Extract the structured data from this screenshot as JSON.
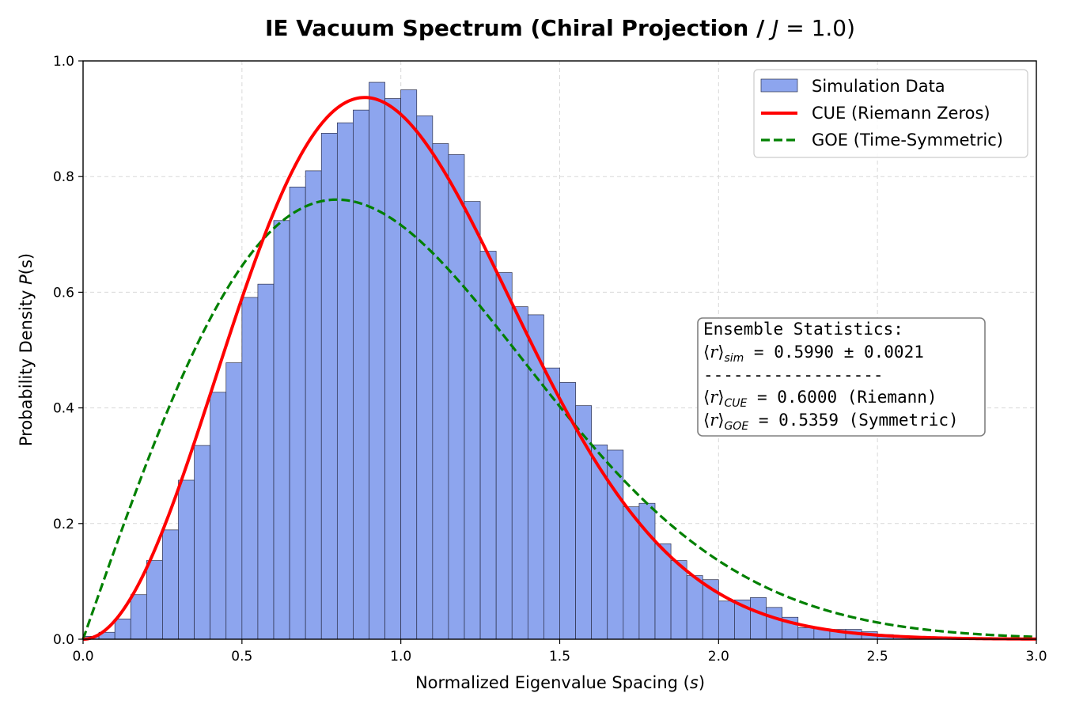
{
  "chart_data": {
    "type": "histogram",
    "title": "IE Vacuum Spectrum (Chiral Projection / J = 1.0)",
    "title_main": "IE Vacuum Spectrum (Chiral Projection / ",
    "title_var": "J",
    "title_eq": " = 1.0)",
    "xlabel": "Normalized Eigenvalue Spacing (s)",
    "xlabel_main": "Normalized Eigenvalue Spacing (",
    "xlabel_var": "s",
    "xlabel_close": ")",
    "ylabel": "Probability Density P(s)",
    "ylabel_main": "Probability Density ",
    "ylabel_var": "P",
    "ylabel_close": "(s)",
    "xlim": [
      0.0,
      3.0
    ],
    "ylim": [
      0.0,
      1.0
    ],
    "xticks": [
      0.0,
      0.5,
      1.0,
      1.5,
      2.0,
      2.5,
      3.0
    ],
    "xtick_labels": [
      "0.0",
      "0.5",
      "1.0",
      "1.5",
      "2.0",
      "2.5",
      "3.0"
    ],
    "yticks": [
      0.0,
      0.2,
      0.4,
      0.6,
      0.8,
      1.0
    ],
    "ytick_labels": [
      "0.0",
      "0.2",
      "0.4",
      "0.6",
      "0.8",
      "1.0"
    ],
    "grid": true,
    "legend_position": "upper-right",
    "histogram": {
      "name": "Simulation Data",
      "bin_width": 0.05,
      "bin_start": 0.0,
      "color": "#8da5ee",
      "edge_color": "#2b2f4a",
      "values": [
        0.005,
        0.012,
        0.035,
        0.077,
        0.136,
        0.189,
        0.275,
        0.335,
        0.427,
        0.478,
        0.591,
        0.614,
        0.724,
        0.782,
        0.81,
        0.875,
        0.893,
        0.915,
        0.963,
        0.935,
        0.95,
        0.905,
        0.857,
        0.838,
        0.757,
        0.671,
        0.634,
        0.575,
        0.561,
        0.469,
        0.444,
        0.404,
        0.336,
        0.327,
        0.229,
        0.235,
        0.165,
        0.136,
        0.11,
        0.103,
        0.066,
        0.068,
        0.072,
        0.055,
        0.038,
        0.02,
        0.018,
        0.017,
        0.017,
        0.013,
        0.008,
        0.006,
        0.004,
        0.003,
        0.003,
        0.002,
        0.002,
        0.001,
        0.001,
        0.001
      ]
    },
    "curves": [
      {
        "name": "CUE (Riemann Zeros)",
        "formula": "(32/pi^2) s^2 exp(-4 s^2/pi)",
        "color": "#ff0000",
        "style": "solid"
      },
      {
        "name": "GOE (Time-Symmetric)",
        "formula": "(pi/2) s exp(-pi s^2/4)",
        "color": "#008000",
        "style": "dashed"
      }
    ],
    "stats_box": {
      "title": "Ensemble Statistics:",
      "sim_sub": "sim",
      "sim_value": " = 0.5990 ± 0.0021",
      "separator": "------------------",
      "cue_sub": "CUE",
      "cue_value": " = 0.6000 (Riemann)",
      "goe_sub": "GOE",
      "goe_value": " = 0.5359 (Symmetric)"
    }
  },
  "legend": {
    "items": [
      {
        "label": "Simulation Data"
      },
      {
        "label": "CUE (Riemann Zeros)"
      },
      {
        "label": "GOE (Time-Symmetric)"
      }
    ]
  }
}
